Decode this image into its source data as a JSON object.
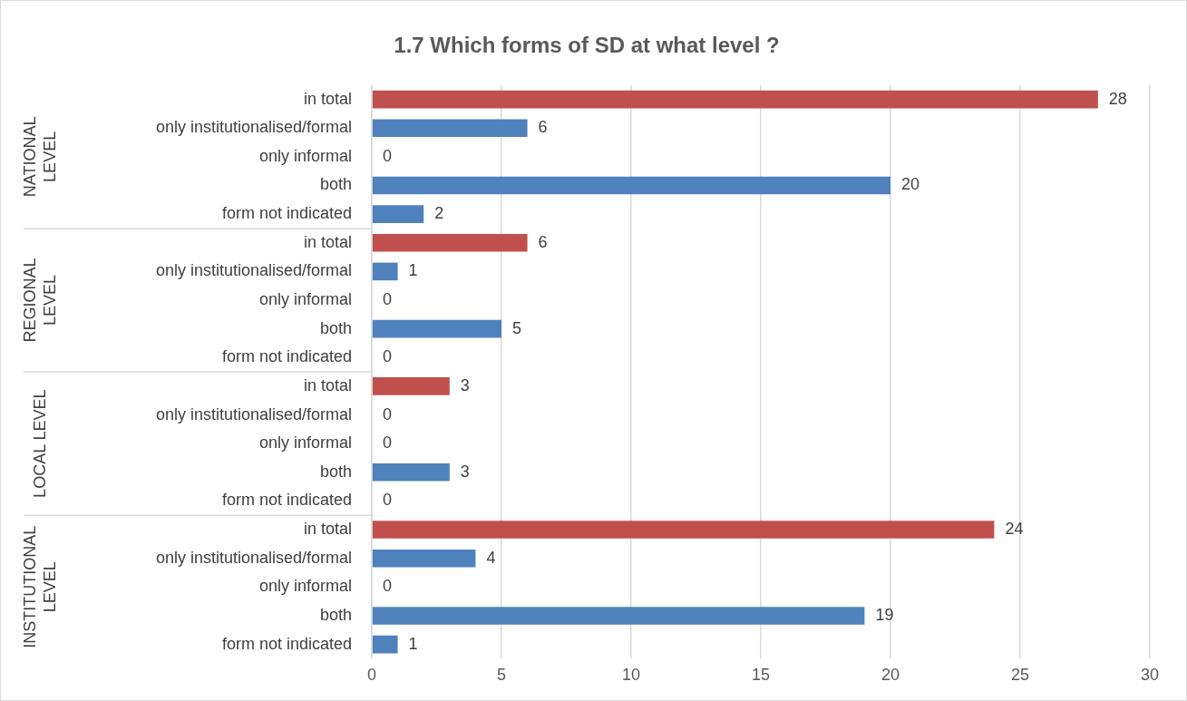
{
  "chart_data": {
    "type": "bar",
    "orientation": "horizontal",
    "title": "1.7 Which forms of SD at what level ?",
    "categories": [
      "in total",
      "only institutionalised/formal",
      "only informal",
      "both",
      "form not indicated",
      "in total",
      "only institutionalised/formal",
      "only informal",
      "both",
      "form not indicated",
      "in total",
      "only institutionalised/formal",
      "only informal",
      "both",
      "form not indicated",
      "in total",
      "only institutionalised/formal",
      "only informal",
      "both",
      "form not indicated"
    ],
    "values": [
      28,
      6,
      0,
      20,
      2,
      6,
      1,
      0,
      5,
      0,
      3,
      0,
      0,
      3,
      0,
      24,
      4,
      0,
      19,
      1
    ],
    "colors": [
      "#c0504d",
      "#4f81bd",
      "#4f81bd",
      "#4f81bd",
      "#4f81bd",
      "#c0504d",
      "#4f81bd",
      "#4f81bd",
      "#4f81bd",
      "#4f81bd",
      "#c0504d",
      "#4f81bd",
      "#4f81bd",
      "#4f81bd",
      "#4f81bd",
      "#c0504d",
      "#4f81bd",
      "#4f81bd",
      "#4f81bd",
      "#4f81bd"
    ],
    "annotations": [
      "NATIONAL LEVEL",
      "REGIONAL LEVEL",
      "LOCAL LEVEL",
      "INSTITUTIONAL LEVEL"
    ],
    "xlim": [
      0,
      30
    ],
    "xticks": [
      0,
      5,
      10,
      15,
      20,
      25,
      30
    ],
    "grid": "x",
    "data_labels": true,
    "legend": false
  }
}
